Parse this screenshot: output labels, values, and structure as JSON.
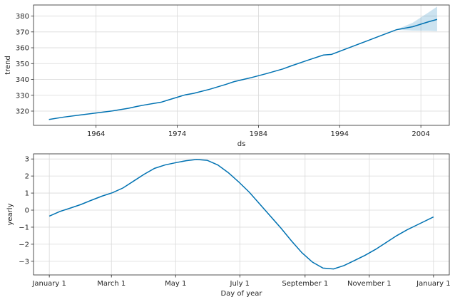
{
  "chart_data": [
    {
      "type": "line",
      "xlabel": "ds",
      "ylabel": "trend",
      "xlim": [
        1956.3,
        2007.5
      ],
      "ylim": [
        311,
        387
      ],
      "grid": true,
      "line_color": "#0072B2",
      "band_color": "#0072B2",
      "x_ticks": [
        1964,
        1974,
        1984,
        1994,
        2004
      ],
      "x_tick_labels": [
        "1964",
        "1974",
        "1984",
        "1994",
        "2004"
      ],
      "y_ticks": [
        320,
        330,
        340,
        350,
        360,
        370,
        380
      ],
      "y_tick_labels": [
        "320",
        "330",
        "340",
        "350",
        "360",
        "370",
        "380"
      ],
      "series": [
        {
          "x": [
            1958.2,
            1960,
            1962,
            1964,
            1966,
            1968,
            1969,
            1970,
            1972,
            1973,
            1975,
            1976,
            1978,
            1980,
            1981,
            1983,
            1985,
            1987,
            1988,
            1990,
            1992,
            1993,
            1995,
            1997,
            1999,
            2001,
            2003,
            2005,
            2006
          ],
          "y": [
            314.7,
            316.2,
            317.5,
            318.8,
            320.1,
            321.8,
            322.9,
            323.9,
            325.6,
            327.2,
            330.3,
            331.2,
            333.8,
            336.9,
            338.6,
            341.0,
            343.7,
            346.6,
            348.5,
            352.0,
            355.4,
            355.8,
            359.7,
            363.6,
            367.5,
            371.4,
            373.3,
            376.5,
            377.9
          ],
          "band_x": [
            2001,
            2003,
            2005,
            2006
          ],
          "band_upper": [
            371.5,
            375.8,
            382.5,
            386.0
          ],
          "band_lower": [
            371.3,
            370.8,
            370.7,
            370.5
          ]
        }
      ]
    },
    {
      "type": "line",
      "xlabel": "Day of year",
      "ylabel": "yearly",
      "xlim": [
        -15,
        380
      ],
      "ylim": [
        -3.8,
        3.3
      ],
      "grid": true,
      "line_color": "#0072B2",
      "x_ticks": [
        0,
        59,
        120,
        181,
        243,
        304,
        365
      ],
      "x_tick_labels": [
        "January 1",
        "March 1",
        "May 1",
        "July 1",
        "September 1",
        "November 1",
        "January 1"
      ],
      "y_ticks": [
        -3,
        -2,
        -1,
        0,
        1,
        2,
        3
      ],
      "y_tick_labels": [
        "−3",
        "−2",
        "−1",
        "0",
        "1",
        "2",
        "3"
      ],
      "series": [
        {
          "x": [
            0,
            10,
            20,
            30,
            40,
            50,
            60,
            70,
            80,
            90,
            100,
            110,
            120,
            130,
            140,
            150,
            160,
            170,
            180,
            190,
            200,
            210,
            220,
            230,
            240,
            250,
            260,
            270,
            280,
            290,
            300,
            310,
            320,
            330,
            340,
            350,
            365
          ],
          "y": [
            -0.35,
            -0.08,
            0.12,
            0.33,
            0.58,
            0.82,
            1.02,
            1.3,
            1.7,
            2.1,
            2.45,
            2.65,
            2.78,
            2.9,
            2.97,
            2.92,
            2.65,
            2.2,
            1.65,
            1.05,
            0.35,
            -0.35,
            -1.05,
            -1.8,
            -2.5,
            -3.05,
            -3.4,
            -3.45,
            -3.25,
            -2.95,
            -2.65,
            -2.3,
            -1.9,
            -1.5,
            -1.15,
            -0.85,
            -0.4
          ]
        }
      ]
    }
  ]
}
